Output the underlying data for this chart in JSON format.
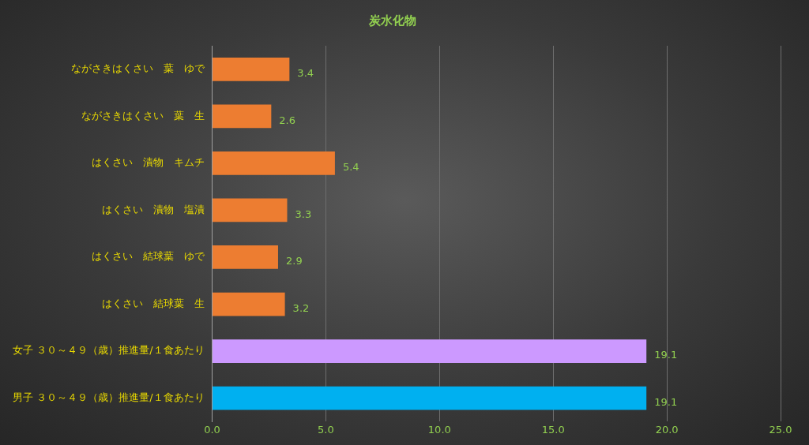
{
  "chart_data": {
    "type": "bar",
    "orientation": "horizontal",
    "title": "炭水化物",
    "categories": [
      "ながさきはくさい　葉　ゆで",
      "ながさきはくさい　葉　生",
      "はくさい　漬物　キムチ",
      "はくさい　漬物　塩漬",
      "はくさい　結球葉　ゆで",
      "はくさい　結球葉　生",
      "女子 ３０～４９（歳）推進量/１食あたり",
      "男子 ３０～４９（歳）推進量/１食あたり"
    ],
    "values": [
      3.4,
      2.6,
      5.4,
      3.3,
      2.9,
      3.2,
      19.1,
      19.1
    ],
    "colors": [
      "#ed7d31",
      "#ed7d31",
      "#ed7d31",
      "#ed7d31",
      "#ed7d31",
      "#ed7d31",
      "#cc99ff",
      "#00b0f0"
    ],
    "xlim": [
      0,
      25
    ],
    "xticks": [
      {
        "value": 0,
        "label": "0.0"
      },
      {
        "value": 5,
        "label": "5.0"
      },
      {
        "value": 10,
        "label": "10.0"
      },
      {
        "value": 15,
        "label": "15.0"
      },
      {
        "value": 20,
        "label": "20.0"
      },
      {
        "value": 25,
        "label": "25.0"
      }
    ],
    "grid": "x",
    "legend": false,
    "data_labels": true
  }
}
